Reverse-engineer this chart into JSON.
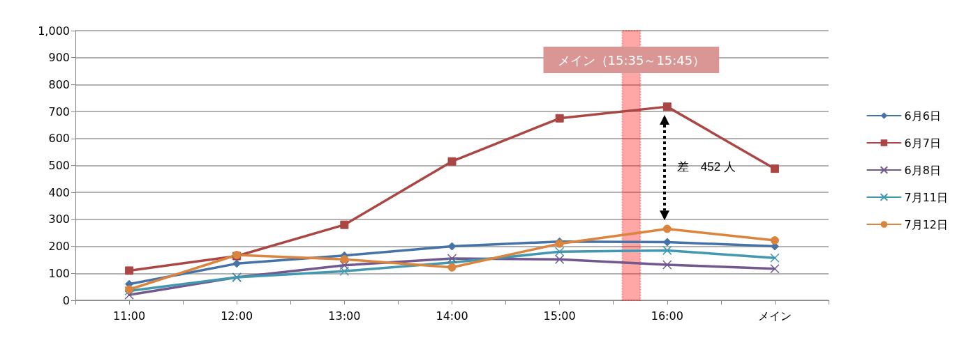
{
  "chart_data": {
    "type": "line",
    "x": [
      11,
      12,
      13,
      14,
      15,
      16,
      17
    ],
    "xlim": [
      10.5,
      17.5
    ],
    "xticks": [
      {
        "value": 10.5,
        "label": null
      },
      {
        "value": 11,
        "label": "11:00"
      },
      {
        "value": 11.5,
        "label": null
      },
      {
        "value": 12,
        "label": "12:00"
      },
      {
        "value": 12.5,
        "label": null
      },
      {
        "value": 13,
        "label": "13:00"
      },
      {
        "value": 13.5,
        "label": null
      },
      {
        "value": 14,
        "label": "14:00"
      },
      {
        "value": 14.5,
        "label": null
      },
      {
        "value": 15,
        "label": "15:00"
      },
      {
        "value": 15.5,
        "label": null
      },
      {
        "value": 16,
        "label": "16:00"
      },
      {
        "value": 16.5,
        "label": null
      },
      {
        "value": 17,
        "label": "メイン"
      },
      {
        "value": 17.5,
        "label": null
      }
    ],
    "ylim": [
      0,
      1000
    ],
    "yticks": [
      0,
      100,
      200,
      300,
      400,
      500,
      600,
      700,
      800,
      900,
      {
        "value": 1000,
        "label": "1,000"
      }
    ],
    "grid": "y",
    "legend": "right",
    "line_style": "solid",
    "series": [
      {
        "name": "6月6日",
        "color": "#4572a7",
        "marker": "diamond",
        "values": [
          60,
          136,
          166,
          200,
          218,
          216,
          200
        ]
      },
      {
        "name": "6月7日",
        "color": "#aa4643",
        "marker": "square",
        "values": [
          110,
          164,
          280,
          515,
          675,
          718,
          488
        ]
      },
      {
        "name": "6月8日",
        "color": "#71588f",
        "marker": "cross",
        "values": [
          20,
          85,
          130,
          155,
          152,
          132,
          117
        ]
      },
      {
        "name": "7月11日",
        "color": "#4198af",
        "marker": "cross",
        "values": [
          35,
          85,
          108,
          140,
          180,
          185,
          157
        ]
      },
      {
        "name": "7月12日",
        "color": "#db843d",
        "marker": "circle",
        "values": [
          40,
          168,
          152,
          122,
          210,
          265,
          222
        ]
      }
    ],
    "bands": [
      {
        "axis": "x",
        "from": 15.583,
        "to": 15.75,
        "label": "メイン（15:35～15:45）",
        "color": "#ff0000"
      }
    ],
    "annotations": [
      "差　452 人"
    ]
  }
}
